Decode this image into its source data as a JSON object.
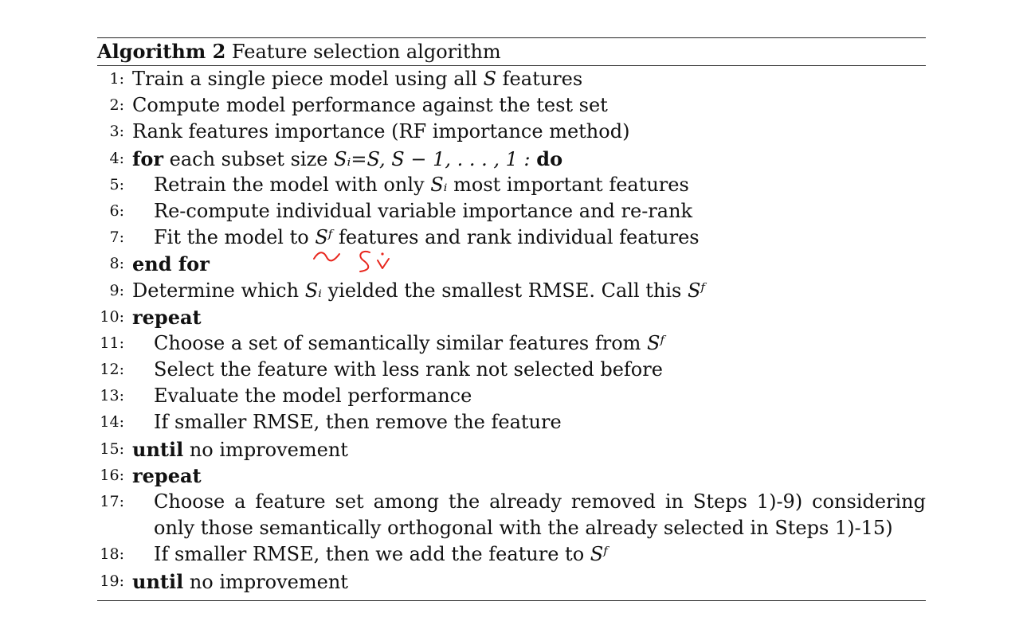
{
  "algorithm": {
    "label": "Algorithm 2",
    "title": "Feature selection algorithm"
  },
  "steps": [
    {
      "num": "1:",
      "text": "Train a single piece model using all ",
      "math": "S",
      "tail": " features"
    },
    {
      "num": "2:",
      "text": "Compute model performance against the test set"
    },
    {
      "num": "3:",
      "text": "Rank features importance (RF importance method)"
    },
    {
      "num": "4:",
      "kw1": "for",
      "text": " each subset size ",
      "math": "Sᵢ=S, S − 1, . . . , 1 :",
      "kw2": "do"
    },
    {
      "num": "5:",
      "text": "Retrain the model with only ",
      "math": "Sᵢ",
      "tail": " most important features"
    },
    {
      "num": "6:",
      "text": "Re-compute individual variable importance and re-rank"
    },
    {
      "num": "7:",
      "text": "Fit the model to ",
      "math": "Sᶠ",
      "tail": " features and rank individual features"
    },
    {
      "num": "8:",
      "kw1": "end for"
    },
    {
      "num": "9:",
      "text": "Determine which ",
      "math": "Sᵢ",
      "tail": " yielded the smallest RMSE. Call this ",
      "math2": "Sᶠ"
    },
    {
      "num": "10:",
      "kw1": "repeat"
    },
    {
      "num": "11:",
      "text": "Choose a set of semantically similar features from ",
      "math": "Sᶠ"
    },
    {
      "num": "12:",
      "text": "Select the feature with less rank not selected before"
    },
    {
      "num": "13:",
      "text": "Evaluate the model performance"
    },
    {
      "num": "14:",
      "text": "If smaller RMSE, then remove the feature"
    },
    {
      "num": "15:",
      "kw1": "until",
      "text": " no improvement"
    },
    {
      "num": "16:",
      "kw1": "repeat"
    },
    {
      "num": "17:",
      "text": "Choose a feature set among the already removed in Steps 1)-9) considering only those semantically orthogonal with the already selected in Steps 1)-15)"
    },
    {
      "num": "18:",
      "text": "If smaller RMSE, then we add the feature to ",
      "math": "Sᶠ"
    },
    {
      "num": "19:",
      "kw1": "until",
      "text": " no improvement"
    }
  ],
  "annotation": {
    "handwritten_note": "Si",
    "color": "#e8261d"
  }
}
